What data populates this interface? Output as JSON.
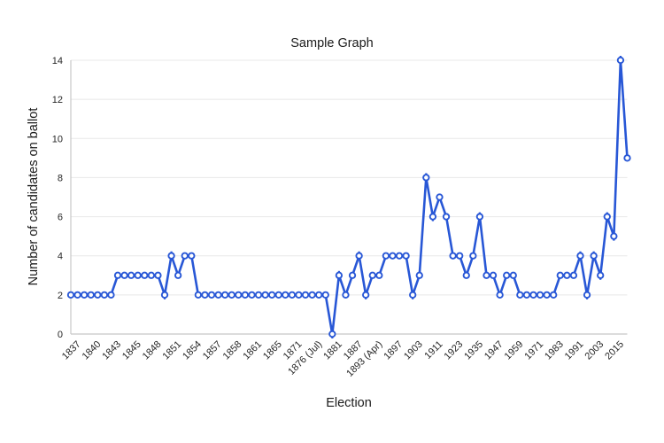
{
  "chart_data": {
    "type": "line",
    "title": "Sample Graph",
    "xlabel": "Election",
    "ylabel": "Number of candidates on ballot",
    "ylim": [
      0,
      14
    ],
    "yticks": [
      0,
      2,
      4,
      6,
      8,
      10,
      12,
      14
    ],
    "grid": "horizontal",
    "legend": "none",
    "line_color": "#2857D6",
    "marker_style": "open-circle",
    "grid_color": "#e8e8e8",
    "axis_color": "#c8c8c8",
    "tick_text_color": "#262626",
    "label_text_color": "#1a1a1a",
    "values": [
      2,
      2,
      2,
      2,
      2,
      2,
      2,
      3,
      3,
      3,
      3,
      3,
      3,
      3,
      2,
      4,
      3,
      4,
      4,
      2,
      2,
      2,
      2,
      2,
      2,
      2,
      2,
      2,
      2,
      2,
      2,
      2,
      2,
      2,
      2,
      2,
      2,
      2,
      2,
      0,
      3,
      2,
      3,
      4,
      2,
      3,
      3,
      4,
      4,
      4,
      4,
      2,
      3,
      8,
      6,
      7,
      6,
      4,
      4,
      3,
      4,
      6,
      3,
      3,
      2,
      3,
      3,
      2,
      2,
      2,
      2,
      2,
      2,
      3,
      3,
      3,
      4,
      2,
      4,
      3,
      6,
      5,
      14,
      9
    ],
    "x_tick_labels": [
      "1837",
      "1840",
      "1843",
      "1845",
      "1848",
      "1851",
      "1854",
      "1857",
      "1858",
      "1861",
      "1865",
      "1871",
      "1876 (Jul)",
      "1881",
      "1887",
      "1893 (Apr)",
      "1897",
      "1903",
      "1911",
      "1923",
      "1935",
      "1947",
      "1959",
      "1971",
      "1983",
      "1991",
      "2003",
      "2015"
    ],
    "label_start_index": 1,
    "label_every": 3
  }
}
